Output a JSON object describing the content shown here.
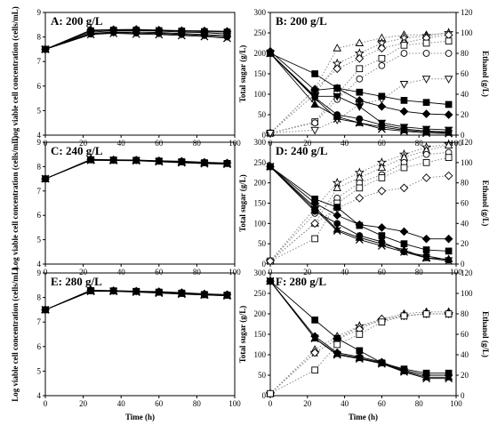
{
  "chart_data": [
    {
      "id": "A",
      "type": "line",
      "title": "A: 200 g/L",
      "xlabel": "",
      "ylabel": "Log viable cell concentration (cells/mL)",
      "xlim": [
        0,
        100
      ],
      "ylim": [
        4,
        9
      ],
      "xticks": [
        "0",
        "20",
        "40",
        "60",
        "80",
        "100"
      ],
      "yticks": [
        "4",
        "5",
        "6",
        "7",
        "8",
        "9"
      ],
      "x": [
        0,
        24,
        36,
        48,
        60,
        72,
        84,
        96
      ],
      "series": [
        {
          "marker": "diamond",
          "values": [
            7.5,
            8.28,
            8.3,
            8.31,
            8.28,
            8.26,
            8.25,
            8.23
          ]
        },
        {
          "marker": "square",
          "values": [
            7.5,
            8.25,
            8.28,
            8.28,
            8.26,
            8.24,
            8.22,
            8.2
          ]
        },
        {
          "marker": "triangle",
          "values": [
            7.5,
            8.2,
            8.25,
            8.26,
            8.24,
            8.2,
            8.18,
            8.12
          ]
        },
        {
          "marker": "triangle-down",
          "values": [
            7.5,
            8.15,
            8.2,
            8.2,
            8.18,
            8.14,
            8.1,
            8.05
          ]
        },
        {
          "marker": "circle",
          "values": [
            7.5,
            8.12,
            8.18,
            8.16,
            8.14,
            8.1,
            8.06,
            8.0
          ]
        },
        {
          "marker": "star",
          "values": [
            7.5,
            8.1,
            8.15,
            8.12,
            8.1,
            8.06,
            8.02,
            7.95
          ]
        }
      ]
    },
    {
      "id": "B",
      "type": "line",
      "title": "B: 200 g/L",
      "xlabel": "",
      "ylabel": "Total sugar (g/L)",
      "y2label": "Ethanol (g/L)",
      "xlim": [
        0,
        100
      ],
      "ylim": [
        0,
        300
      ],
      "y2lim": [
        0,
        120
      ],
      "xticks": [
        "0",
        "20",
        "40",
        "60",
        "80",
        "100"
      ],
      "yticks": [
        "0",
        "50",
        "100",
        "150",
        "200",
        "250",
        "300"
      ],
      "y2ticks": [
        "0",
        "20",
        "40",
        "60",
        "80",
        "100",
        "120"
      ],
      "x": [
        0,
        24,
        36,
        48,
        60,
        72,
        84,
        96
      ],
      "sugar": [
        {
          "marker": "square",
          "values": [
            200,
            150,
            115,
            105,
            95,
            85,
            80,
            75
          ]
        },
        {
          "marker": "diamond",
          "values": [
            205,
            110,
            115,
            85,
            70,
            58,
            52,
            50
          ]
        },
        {
          "marker": "triangle-down",
          "values": [
            200,
            95,
            95,
            70,
            30,
            20,
            15,
            13
          ]
        },
        {
          "marker": "circle",
          "values": [
            200,
            92,
            50,
            40,
            25,
            15,
            10,
            8
          ]
        },
        {
          "marker": "triangle",
          "values": [
            200,
            75,
            45,
            30,
            20,
            12,
            8,
            6
          ]
        },
        {
          "marker": "star",
          "values": [
            200,
            90,
            40,
            30,
            15,
            10,
            5,
            4
          ]
        }
      ],
      "ethanol": [
        {
          "marker": "triangle",
          "values": [
            2,
            45,
            85,
            90,
            95,
            98,
            98,
            100
          ]
        },
        {
          "marker": "star",
          "values": [
            2,
            40,
            70,
            80,
            90,
            95,
            97,
            100
          ]
        },
        {
          "marker": "diamond",
          "values": [
            2,
            45,
            65,
            75,
            85,
            90,
            95,
            98
          ]
        },
        {
          "marker": "square",
          "values": [
            2,
            13,
            40,
            65,
            75,
            88,
            90,
            92
          ]
        },
        {
          "marker": "circle",
          "values": [
            2,
            12,
            35,
            55,
            68,
            80,
            80,
            80
          ]
        },
        {
          "marker": "triangle-down",
          "values": [
            2,
            5,
            15,
            30,
            35,
            50,
            55,
            55
          ]
        }
      ]
    },
    {
      "id": "C",
      "type": "line",
      "title": "C: 240 g/L",
      "xlabel": "",
      "ylabel": "Log viable cell concentration (cells/mL)",
      "xlim": [
        0,
        100
      ],
      "ylim": [
        4,
        9
      ],
      "xticks": [
        "0",
        "20",
        "40",
        "60",
        "80",
        "100"
      ],
      "yticks": [
        "4",
        "5",
        "6",
        "7",
        "8",
        "9"
      ],
      "x": [
        0,
        24,
        36,
        48,
        60,
        72,
        84,
        96
      ],
      "series": [
        {
          "marker": "diamond",
          "values": [
            7.5,
            8.3,
            8.28,
            8.27,
            8.24,
            8.22,
            8.18,
            8.15
          ]
        },
        {
          "marker": "square",
          "values": [
            7.5,
            8.28,
            8.27,
            8.26,
            8.23,
            8.2,
            8.16,
            8.13
          ]
        },
        {
          "marker": "triangle",
          "values": [
            7.5,
            8.27,
            8.26,
            8.25,
            8.22,
            8.18,
            8.15,
            8.12
          ]
        },
        {
          "marker": "star",
          "values": [
            7.5,
            8.26,
            8.25,
            8.24,
            8.2,
            8.16,
            8.12,
            8.1
          ]
        }
      ]
    },
    {
      "id": "D",
      "type": "line",
      "title": "D: 240 g/L",
      "xlabel": "",
      "ylabel": "Total sugar (g/L)",
      "y2label": "Ethanol (g/L)",
      "xlim": [
        0,
        100
      ],
      "ylim": [
        0,
        300
      ],
      "y2lim": [
        0,
        120
      ],
      "xticks": [
        "0",
        "20",
        "40",
        "60",
        "80",
        "100"
      ],
      "yticks": [
        "0",
        "50",
        "100",
        "150",
        "200",
        "250",
        "300"
      ],
      "y2ticks": [
        "0",
        "20",
        "40",
        "60",
        "80",
        "100",
        "120"
      ],
      "x": [
        0,
        24,
        36,
        48,
        60,
        72,
        84,
        96
      ],
      "sugar": [
        {
          "marker": "diamond",
          "values": [
            240,
            150,
            120,
            97,
            90,
            80,
            62,
            62
          ]
        },
        {
          "marker": "square",
          "values": [
            240,
            160,
            140,
            95,
            70,
            50,
            35,
            32
          ]
        },
        {
          "marker": "triangle",
          "values": [
            240,
            140,
            85,
            65,
            50,
            35,
            15,
            12
          ]
        },
        {
          "marker": "circle",
          "values": [
            240,
            130,
            100,
            70,
            55,
            30,
            20,
            10
          ]
        },
        {
          "marker": "star",
          "values": [
            240,
            135,
            82,
            60,
            45,
            30,
            15,
            8
          ]
        }
      ],
      "ethanol": [
        {
          "marker": "star",
          "values": [
            3,
            55,
            80,
            90,
            100,
            108,
            115,
            118
          ]
        },
        {
          "marker": "triangle",
          "values": [
            3,
            40,
            75,
            85,
            95,
            105,
            112,
            117
          ]
        },
        {
          "marker": "circle",
          "values": [
            3,
            50,
            65,
            80,
            88,
            100,
            108,
            110
          ]
        },
        {
          "marker": "square",
          "values": [
            3,
            25,
            60,
            75,
            85,
            95,
            100,
            105
          ]
        },
        {
          "marker": "diamond",
          "values": [
            3,
            40,
            55,
            65,
            72,
            75,
            85,
            87
          ]
        }
      ]
    },
    {
      "id": "E",
      "type": "line",
      "title": "E: 280 g/L",
      "xlabel": "Time (h)",
      "ylabel": "Log viable cell concentration (cells/mL)",
      "xlim": [
        0,
        100
      ],
      "ylim": [
        4,
        9
      ],
      "xticks": [
        "0",
        "20",
        "40",
        "60",
        "80",
        "100"
      ],
      "yticks": [
        "4",
        "5",
        "6",
        "7",
        "8",
        "9"
      ],
      "x": [
        0,
        24,
        36,
        48,
        60,
        72,
        84,
        96
      ],
      "series": [
        {
          "marker": "diamond",
          "values": [
            7.5,
            8.3,
            8.28,
            8.26,
            8.24,
            8.2,
            8.15,
            8.12
          ]
        },
        {
          "marker": "square",
          "values": [
            7.5,
            8.28,
            8.27,
            8.25,
            8.22,
            8.18,
            8.12,
            8.1
          ]
        },
        {
          "marker": "triangle",
          "values": [
            7.5,
            8.26,
            8.26,
            8.24,
            8.2,
            8.15,
            8.1,
            8.08
          ]
        },
        {
          "marker": "star",
          "values": [
            7.5,
            8.25,
            8.25,
            8.22,
            8.18,
            8.14,
            8.1,
            8.07
          ]
        }
      ]
    },
    {
      "id": "F",
      "type": "line",
      "title": "F: 280 g/L",
      "xlabel": "Time (h)",
      "ylabel": "Total sugar (g/L)",
      "y2label": "Ethanol (g/L)",
      "xlim": [
        0,
        100
      ],
      "ylim": [
        0,
        300
      ],
      "y2lim": [
        0,
        120
      ],
      "xticks": [
        "0",
        "20",
        "40",
        "60",
        "80",
        "100"
      ],
      "yticks": [
        "0",
        "50",
        "100",
        "150",
        "200",
        "250",
        "300"
      ],
      "y2ticks": [
        "0",
        "20",
        "40",
        "60",
        "80",
        "100",
        "120"
      ],
      "x": [
        0,
        24,
        36,
        48,
        60,
        72,
        84,
        96
      ],
      "sugar": [
        {
          "marker": "square",
          "values": [
            280,
            185,
            140,
            110,
            80,
            65,
            55,
            55
          ]
        },
        {
          "marker": "diamond",
          "values": [
            280,
            145,
            105,
            95,
            82,
            62,
            50,
            50
          ]
        },
        {
          "marker": "triangle",
          "values": [
            280,
            140,
            102,
            92,
            80,
            60,
            45,
            45
          ]
        },
        {
          "marker": "star",
          "values": [
            280,
            140,
            100,
            90,
            78,
            58,
            42,
            42
          ]
        }
      ],
      "ethanol": [
        {
          "marker": "triangle",
          "values": [
            2,
            45,
            58,
            68,
            75,
            80,
            82,
            82
          ]
        },
        {
          "marker": "star",
          "values": [
            2,
            42,
            55,
            68,
            73,
            78,
            80,
            80
          ]
        },
        {
          "marker": "diamond",
          "values": [
            2,
            42,
            55,
            65,
            75,
            78,
            80,
            80
          ]
        },
        {
          "marker": "square",
          "values": [
            2,
            25,
            50,
            60,
            72,
            78,
            80,
            80
          ]
        }
      ]
    }
  ]
}
